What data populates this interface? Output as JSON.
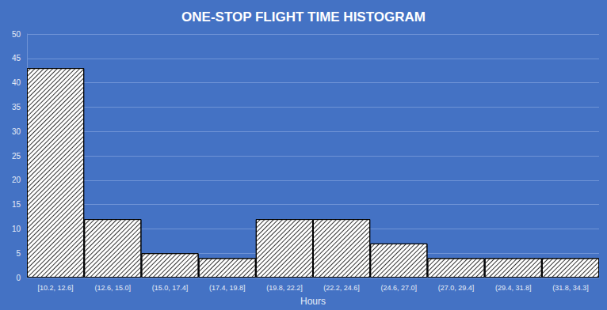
{
  "chart_data": {
    "type": "histogram",
    "title": "ONE-STOP FLIGHT TIME HISTOGRAM",
    "x_label": "Hours",
    "categories": [
      "[10.2, 12.6]",
      "(12.6, 15.0]",
      "(15.0, 17.4]",
      "(17.4, 19.8]",
      "(19.8, 22.2]",
      "(22.2, 24.6]",
      "(24.6, 27.0]",
      "(27.0, 29.4]",
      "(29.4, 31.8]",
      "(31.8, 34.3]"
    ],
    "values": [
      43,
      12,
      5,
      4,
      12,
      12,
      7,
      4,
      4,
      4
    ],
    "color": "#ffffff",
    "ylim": [
      0,
      50
    ],
    "yticks": [
      0,
      5,
      10,
      15,
      20,
      25,
      30,
      35,
      40,
      45,
      50
    ],
    "grid": true
  }
}
